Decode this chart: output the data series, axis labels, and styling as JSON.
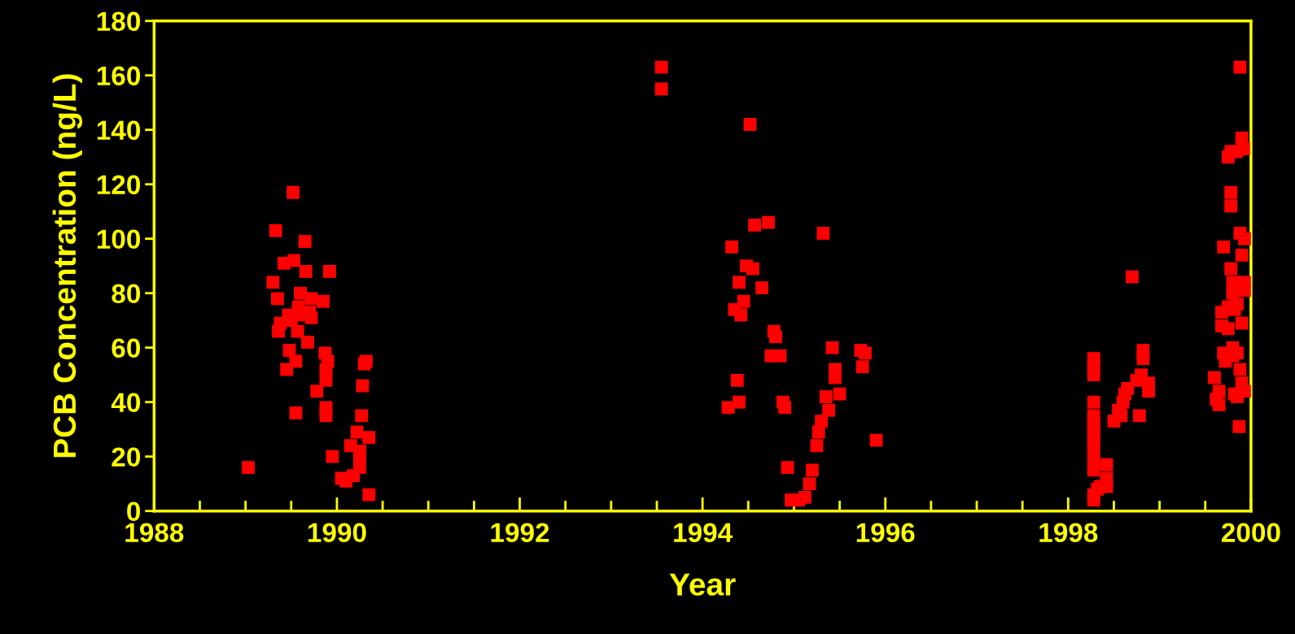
{
  "chart_data": {
    "type": "scatter",
    "xlabel": "Year",
    "ylabel": "PCB Concentration (ng/L)",
    "marker": "square",
    "grid": false,
    "legend": false,
    "xlim": [
      1988,
      2000
    ],
    "ylim": [
      0,
      180
    ],
    "xticks": [
      1988,
      {
        "value": 1988.5,
        "label": null
      },
      {
        "value": 1989,
        "label": null
      },
      {
        "value": 1989.5,
        "label": null
      },
      1990,
      {
        "value": 1990.5,
        "label": null
      },
      {
        "value": 1991,
        "label": null
      },
      {
        "value": 1991.5,
        "label": null
      },
      1992,
      {
        "value": 1992.5,
        "label": null
      },
      {
        "value": 1993,
        "label": null
      },
      {
        "value": 1993.5,
        "label": null
      },
      1994,
      {
        "value": 1994.5,
        "label": null
      },
      {
        "value": 1995,
        "label": null
      },
      {
        "value": 1995.5,
        "label": null
      },
      1996,
      {
        "value": 1996.5,
        "label": null
      },
      {
        "value": 1997,
        "label": null
      },
      {
        "value": 1997.5,
        "label": null
      },
      1998,
      {
        "value": 1998.5,
        "label": null
      },
      {
        "value": 1999,
        "label": null
      },
      {
        "value": 1999.5,
        "label": null
      },
      2000
    ],
    "yticks": [
      0,
      20,
      40,
      60,
      80,
      100,
      120,
      140,
      160,
      180
    ],
    "series": [
      {
        "color": "#ff0000",
        "x": [
          1989.03,
          1989.3,
          1989.33,
          1989.35,
          1989.36,
          1989.38,
          1989.42,
          1989.45,
          1989.47,
          1989.48,
          1989.5,
          1989.52,
          1989.53,
          1989.55,
          1989.55,
          1989.57,
          1989.58,
          1989.6,
          1989.62,
          1989.65,
          1989.66,
          1989.68,
          1989.7,
          1989.72,
          1989.72,
          1989.78,
          1989.85,
          1989.87,
          1989.88,
          1989.88,
          1989.88,
          1989.88,
          1989.9,
          1989.92,
          1989.95,
          1990.05,
          1990.1,
          1990.15,
          1990.18,
          1990.22,
          1990.25,
          1990.25,
          1990.25,
          1990.27,
          1990.28,
          1990.3,
          1990.32,
          1990.35,
          1990.35,
          1993.55,
          1993.55,
          1994.28,
          1994.32,
          1994.35,
          1994.38,
          1994.4,
          1994.4,
          1994.42,
          1994.45,
          1994.48,
          1994.52,
          1994.55,
          1994.57,
          1994.65,
          1994.72,
          1994.75,
          1994.78,
          1994.8,
          1994.85,
          1994.88,
          1994.9,
          1994.93,
          1994.97,
          1995.05,
          1995.12,
          1995.17,
          1995.2,
          1995.25,
          1995.27,
          1995.3,
          1995.32,
          1995.35,
          1995.38,
          1995.42,
          1995.45,
          1995.45,
          1995.5,
          1995.73,
          1995.75,
          1995.78,
          1995.9,
          1998.28,
          1998.28,
          1998.28,
          1998.28,
          1998.28,
          1998.28,
          1998.28,
          1998.28,
          1998.28,
          1998.28,
          1998.28,
          1998.28,
          1998.28,
          1998.28,
          1998.32,
          1998.35,
          1998.42,
          1998.42,
          1998.42,
          1998.5,
          1998.55,
          1998.58,
          1998.6,
          1998.62,
          1998.65,
          1998.7,
          1998.75,
          1998.78,
          1998.8,
          1998.82,
          1998.82,
          1998.88,
          1998.88,
          1999.6,
          1999.62,
          1999.65,
          1999.65,
          1999.68,
          1999.68,
          1999.7,
          1999.7,
          1999.72,
          1999.75,
          1999.75,
          1999.75,
          1999.78,
          1999.78,
          1999.78,
          1999.78,
          1999.8,
          1999.8,
          1999.8,
          1999.8,
          1999.82,
          1999.82,
          1999.84,
          1999.85,
          1999.85,
          1999.85,
          1999.87,
          1999.88,
          1999.88,
          1999.88,
          1999.9,
          1999.9,
          1999.9,
          1999.9,
          1999.92,
          1999.93,
          1999.93,
          1999.93,
          1999.93
        ],
        "values": [
          16,
          84,
          103,
          78,
          66,
          69,
          91,
          52,
          72,
          59,
          70,
          117,
          92,
          36,
          55,
          66,
          75,
          80,
          72,
          99,
          88,
          62,
          73,
          71,
          78,
          44,
          77,
          58,
          52,
          48,
          38,
          35,
          55,
          88,
          20,
          12,
          11,
          24,
          13,
          29,
          22,
          19,
          16,
          35,
          46,
          54,
          55,
          27,
          6,
          163,
          155,
          38,
          97,
          74,
          48,
          40,
          84,
          72,
          77,
          90,
          142,
          89,
          105,
          82,
          106,
          57,
          66,
          64,
          57,
          40,
          38,
          16,
          4,
          4,
          5,
          10,
          15,
          24,
          29,
          33,
          102,
          42,
          37,
          60,
          52,
          49,
          43,
          59,
          53,
          58,
          26,
          56,
          53,
          50,
          40,
          35,
          32,
          30,
          28,
          25,
          22,
          18,
          15,
          6,
          4,
          8,
          9,
          17,
          12,
          9,
          33,
          37,
          35,
          40,
          43,
          45,
          86,
          48,
          35,
          50,
          56,
          59,
          44,
          47,
          49,
          41,
          44,
          39,
          73,
          68,
          97,
          58,
          55,
          130,
          75,
          67,
          132,
          117,
          112,
          89,
          84,
          80,
          60,
          57,
          74,
          43,
          132,
          76,
          58,
          42,
          31,
          163,
          102,
          52,
          137,
          94,
          69,
          47,
          133,
          100,
          84,
          81,
          44
        ]
      }
    ]
  }
}
